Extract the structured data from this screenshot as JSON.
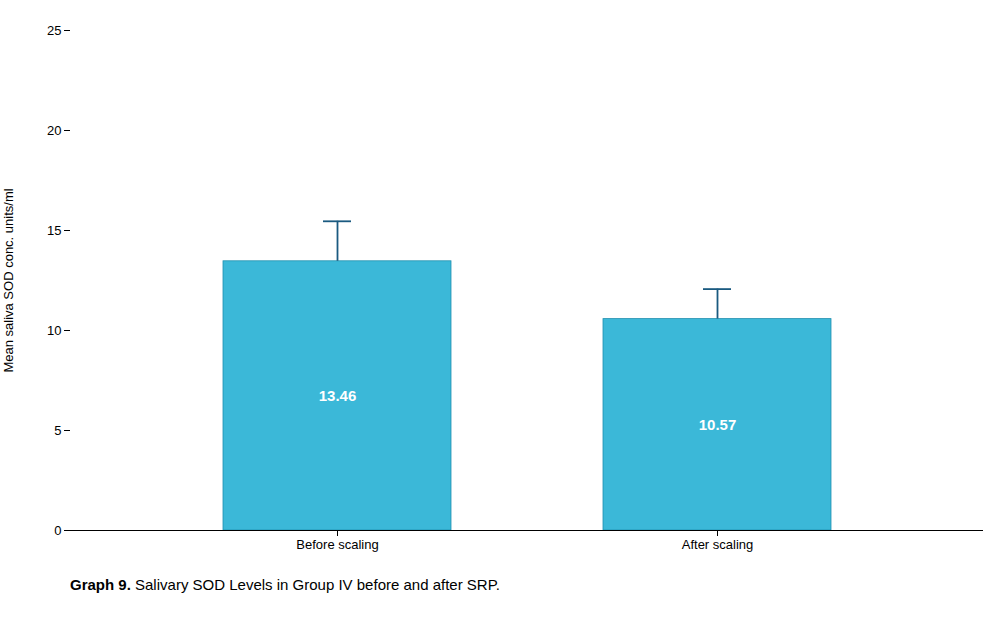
{
  "chart_data": {
    "type": "bar",
    "ylabel": "Mean saliva SOD conc. units/ml",
    "caption": [
      "Graph 9.",
      "Salivary SOD Levels in Group IV before and after SRP."
    ],
    "categories": [
      "Before scaling",
      "After scaling"
    ],
    "values": [
      13.46,
      10.57
    ],
    "error_upper": [
      2.0,
      1.5
    ],
    "color": "#3BB8D8",
    "ylim": [
      0,
      25
    ],
    "yticks": [
      0,
      5,
      10,
      15,
      20,
      25
    ],
    "grid": false,
    "data_labels": true
  }
}
